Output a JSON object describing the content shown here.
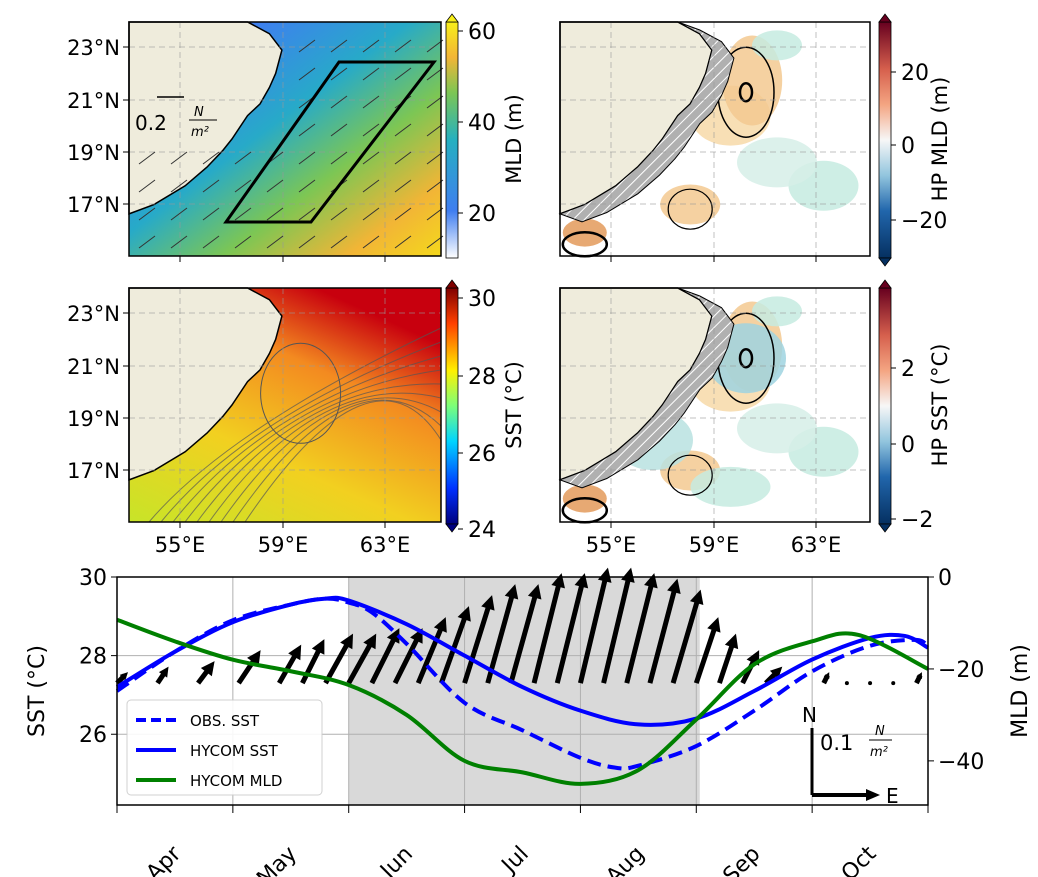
{
  "chart_data": [
    {
      "type": "heatmap",
      "panel": "MLD map",
      "colorbar_label": "MLD (m)",
      "colorbar_ticks": [
        "20",
        "40",
        "60"
      ],
      "colorbar_range": [
        10,
        60
      ],
      "lat_ticks": [
        "23°N",
        "21°N",
        "19°N",
        "17°N"
      ],
      "wind_scale_label": "0.2",
      "wind_scale_unit_num": "N",
      "wind_scale_unit_den": "m2"
    },
    {
      "type": "heatmap",
      "panel": "HP MLD map",
      "colorbar_label": "HP MLD (m)",
      "colorbar_ticks": [
        "20",
        "0",
        "−20"
      ],
      "colorbar_range": [
        -30,
        30
      ]
    },
    {
      "type": "heatmap",
      "panel": "SST map",
      "colorbar_label": "SST (°C)",
      "colorbar_ticks": [
        "30",
        "28",
        "26",
        "24"
      ],
      "colorbar_range": [
        24,
        30
      ],
      "lat_ticks": [
        "23°N",
        "21°N",
        "19°N",
        "17°N"
      ],
      "lon_ticks": [
        "55°E",
        "59°E",
        "63°E"
      ]
    },
    {
      "type": "heatmap",
      "panel": "HP SST map",
      "colorbar_label": "HP SST (°C)",
      "colorbar_ticks": [
        "2",
        "0",
        "−2"
      ],
      "colorbar_range": [
        -3,
        3
      ],
      "lon_ticks": [
        "55°E",
        "59°E",
        "63°E"
      ]
    },
    {
      "type": "line",
      "panel": "time series",
      "xlabel": "",
      "ylabel": "SST (°C)",
      "ylabel_right": "MLD (m)",
      "x_ticks": [
        "Apr",
        "May",
        "Jun",
        "Jul",
        "Aug",
        "Sep",
        "Oct"
      ],
      "xlim": [
        0,
        7
      ],
      "ylim": [
        24.2,
        30
      ],
      "ylim_right": [
        -49.6,
        0
      ],
      "y_ticks": [
        "30",
        "28",
        "26"
      ],
      "y_ticks_right": [
        "0",
        "−20",
        "−40"
      ],
      "shaded_range": [
        2,
        5.03
      ],
      "legend": {
        "placement": "lower-left",
        "entries": [
          "OBS. SST",
          "HYCOM SST",
          "HYCOM MLD"
        ]
      },
      "series": [
        {
          "name": "OBS. SST",
          "axis": "left",
          "color": "#0000ff",
          "dash": true,
          "x": [
            0,
            0.5,
            1,
            1.5,
            1.8,
            2,
            2.2,
            2.5,
            3,
            3.5,
            4,
            4.3,
            4.5,
            5,
            5.5,
            6,
            6.5,
            6.9,
            7
          ],
          "y": [
            27.1,
            28.1,
            28.9,
            29.3,
            29.45,
            29.35,
            29.1,
            28.3,
            26.8,
            26.1,
            25.4,
            25.15,
            25.2,
            25.7,
            26.6,
            27.6,
            28.25,
            28.4,
            28.2
          ]
        },
        {
          "name": "HYCOM SST",
          "axis": "left",
          "color": "#0000ff",
          "dash": false,
          "x": [
            0,
            0.5,
            1,
            1.5,
            1.8,
            2,
            2.5,
            3,
            3.5,
            4,
            4.5,
            5,
            5.5,
            6,
            6.5,
            6.8,
            7
          ],
          "y": [
            27.2,
            28.1,
            28.85,
            29.3,
            29.45,
            29.4,
            28.8,
            28.0,
            27.2,
            26.6,
            26.25,
            26.4,
            27.1,
            27.9,
            28.45,
            28.5,
            28.2
          ]
        },
        {
          "name": "HYCOM MLD",
          "axis": "right",
          "color": "#008000",
          "dash": false,
          "x": [
            0,
            0.5,
            1,
            1.5,
            2,
            2.5,
            3,
            3.5,
            4,
            4.5,
            5,
            5.5,
            6,
            6.4,
            7
          ],
          "y": [
            -9.3,
            -14,
            -18,
            -20.5,
            -23.5,
            -30,
            -40,
            -42.5,
            -45,
            -42,
            -31,
            -19,
            -14,
            -12.6,
            -20
          ]
        }
      ],
      "wind_stress": {
        "scale_label": "0.1",
        "unit_num": "N",
        "unit_den": "m2",
        "north_label": "N",
        "east_label": "E",
        "x": [
          0,
          0.35,
          0.7,
          1.05,
          1.4,
          1.6,
          1.8,
          2,
          2.2,
          2.4,
          2.6,
          2.8,
          3,
          3.2,
          3.4,
          3.6,
          3.8,
          4,
          4.2,
          4.4,
          4.6,
          4.8,
          5,
          5.2,
          5.4,
          5.6,
          6.1,
          6.3,
          6.5,
          6.7,
          6.9
        ],
        "u": [
          0.02,
          0.02,
          0.03,
          0.04,
          0.04,
          0.04,
          0.05,
          0.05,
          0.05,
          0.05,
          0.05,
          0.05,
          0.05,
          0.05,
          0.05,
          0.05,
          0.05,
          0.05,
          0.05,
          0.05,
          0.05,
          0.05,
          0.04,
          0.03,
          0.03,
          0.03,
          0.01,
          0,
          0,
          0,
          0.01
        ],
        "v": [
          0.02,
          0.03,
          0.04,
          0.06,
          0.07,
          0.08,
          0.09,
          0.09,
          0.1,
          0.1,
          0.12,
          0.14,
          0.16,
          0.18,
          0.18,
          0.2,
          0.2,
          0.21,
          0.21,
          0.2,
          0.19,
          0.17,
          0.12,
          0.09,
          0.06,
          0.03,
          0.02,
          0,
          0,
          0,
          0.02
        ]
      }
    }
  ]
}
